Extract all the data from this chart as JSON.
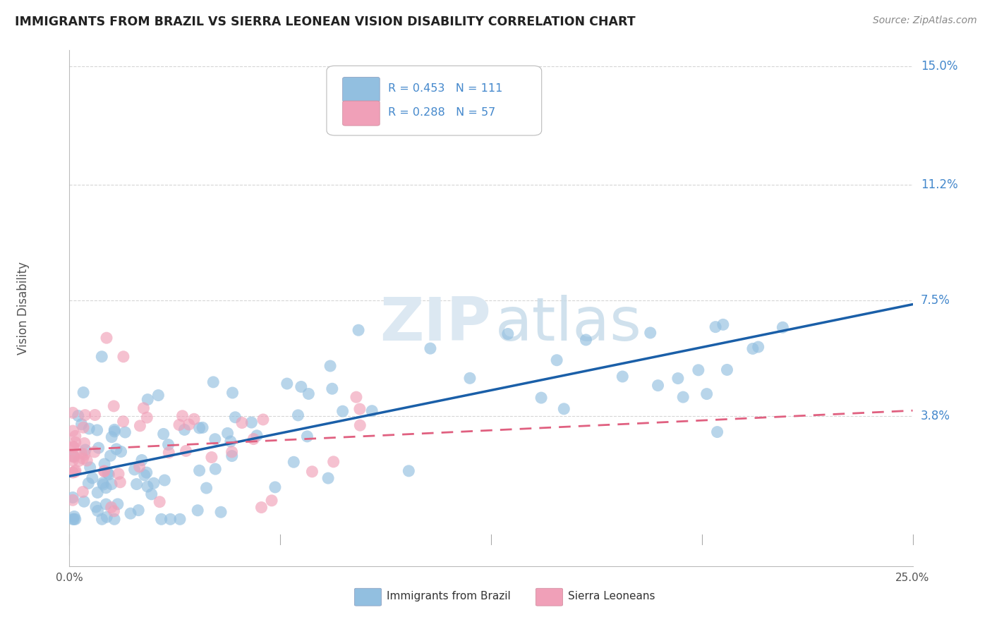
{
  "title": "IMMIGRANTS FROM BRAZIL VS SIERRA LEONEAN VISION DISABILITY CORRELATION CHART",
  "source_text": "Source: ZipAtlas.com",
  "ylabel": "Vision Disability",
  "xmin": 0.0,
  "xmax": 0.25,
  "ymin": 0.0,
  "ymax": 0.155,
  "yticks": [
    0.038,
    0.075,
    0.112,
    0.15
  ],
  "ytick_labels": [
    "3.8%",
    "7.5%",
    "11.2%",
    "15.0%"
  ],
  "xtick_labels": [
    "0.0%",
    "25.0%"
  ],
  "legend_r1": "R = 0.453",
  "legend_n1": "N = 111",
  "legend_r2": "R = 0.288",
  "legend_n2": "N = 57",
  "legend_label1": "Immigrants from Brazil",
  "legend_label2": "Sierra Leoneans",
  "blue_color": "#92bfe0",
  "pink_color": "#f0a0b8",
  "line_blue": "#1a5fa8",
  "line_pink": "#e06080",
  "watermark_zip": "ZIP",
  "watermark_atlas": "atlas",
  "background_color": "#ffffff",
  "grid_color": "#cccccc",
  "title_color": "#222222",
  "source_color": "#888888",
  "label_color": "#4488cc",
  "axis_label_color": "#555555"
}
